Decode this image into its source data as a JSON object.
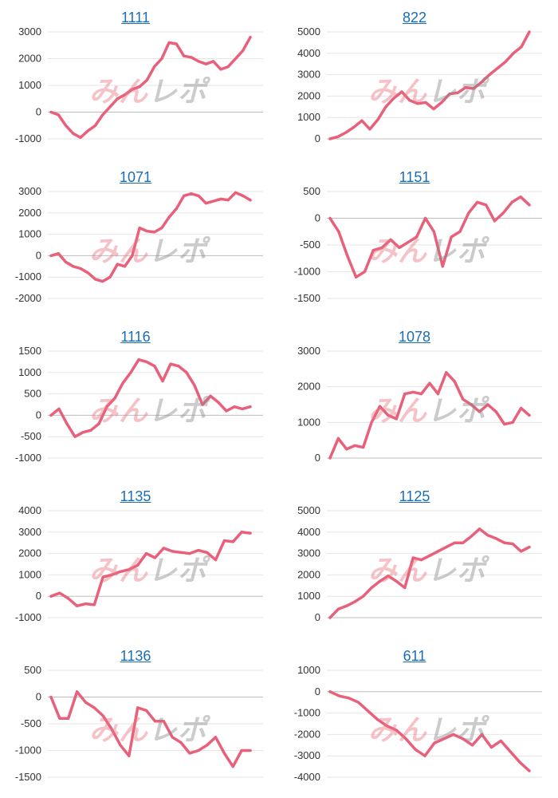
{
  "watermark": {
    "part1": "みん",
    "part2": "レポ"
  },
  "colors": {
    "line": "#e8607a",
    "title": "#1a6db5",
    "grid": "#e6e6e6",
    "zero": "#bdbdbd"
  },
  "chart_data": [
    {
      "type": "line",
      "title": "1111",
      "ylim": [
        -1000,
        3000
      ],
      "yticks": [
        3000,
        2000,
        1000,
        0,
        -1000
      ],
      "values": [
        0,
        -100,
        -500,
        -800,
        -950,
        -700,
        -500,
        -100,
        200,
        500,
        650,
        850,
        950,
        1200,
        1700,
        2000,
        2600,
        2550,
        2100,
        2050,
        1900,
        1800,
        1900,
        1600,
        1700,
        2000,
        2300,
        2800
      ]
    },
    {
      "type": "line",
      "title": "822",
      "ylim": [
        0,
        5000
      ],
      "yticks": [
        5000,
        4000,
        3000,
        2000,
        1000,
        0
      ],
      "values": [
        0,
        100,
        300,
        550,
        850,
        450,
        900,
        1500,
        1900,
        2200,
        1800,
        1650,
        1700,
        1400,
        1700,
        2100,
        2150,
        2400,
        2350,
        2650,
        3000,
        3300,
        3600,
        4000,
        4300,
        5000
      ]
    },
    {
      "type": "line",
      "title": "1071",
      "ylim": [
        -2000,
        3000
      ],
      "yticks": [
        3000,
        2000,
        1000,
        0,
        -1000,
        -2000
      ],
      "values": [
        0,
        100,
        -300,
        -500,
        -600,
        -800,
        -1100,
        -1200,
        -1000,
        -400,
        -500,
        0,
        1300,
        1150,
        1100,
        1300,
        1800,
        2200,
        2800,
        2900,
        2800,
        2450,
        2550,
        2650,
        2600,
        2950,
        2800,
        2600
      ]
    },
    {
      "type": "line",
      "title": "1151",
      "ylim": [
        -1500,
        500
      ],
      "yticks": [
        500,
        0,
        -500,
        -1000,
        -1500
      ],
      "values": [
        0,
        -250,
        -700,
        -1100,
        -1000,
        -600,
        -550,
        -400,
        -550,
        -450,
        -350,
        0,
        -250,
        -900,
        -350,
        -250,
        100,
        300,
        250,
        -50,
        100,
        300,
        400,
        250
      ]
    },
    {
      "type": "line",
      "title": "1116",
      "ylim": [
        -1000,
        1500
      ],
      "yticks": [
        1500,
        1000,
        500,
        0,
        -500,
        -1000
      ],
      "values": [
        0,
        150,
        -200,
        -500,
        -400,
        -350,
        -200,
        200,
        400,
        750,
        1000,
        1300,
        1250,
        1150,
        800,
        1200,
        1150,
        1000,
        700,
        250,
        450,
        300,
        100,
        200,
        150,
        200
      ]
    },
    {
      "type": "line",
      "title": "1078",
      "ylim": [
        0,
        3000
      ],
      "yticks": [
        3000,
        2000,
        1000,
        0
      ],
      "values": [
        0,
        550,
        250,
        350,
        300,
        1000,
        1450,
        1200,
        1100,
        1800,
        1850,
        1800,
        2100,
        1800,
        2400,
        2150,
        1650,
        1500,
        1300,
        1500,
        1300,
        950,
        1000,
        1400,
        1200
      ]
    },
    {
      "type": "line",
      "title": "1135",
      "ylim": [
        -1000,
        4000
      ],
      "yticks": [
        4000,
        3000,
        2000,
        1000,
        0,
        -1000
      ],
      "values": [
        0,
        150,
        -100,
        -450,
        -350,
        -400,
        900,
        1000,
        1150,
        1250,
        1450,
        2000,
        1800,
        2250,
        2100,
        2050,
        2000,
        2150,
        2050,
        1700,
        2600,
        2550,
        3000,
        2950
      ]
    },
    {
      "type": "line",
      "title": "1125",
      "ylim": [
        0,
        5000
      ],
      "yticks": [
        5000,
        4000,
        3000,
        2000,
        1000,
        0
      ],
      "values": [
        0,
        400,
        550,
        750,
        1000,
        1400,
        1700,
        1950,
        1700,
        1400,
        2800,
        2700,
        2900,
        3100,
        3300,
        3500,
        3500,
        3800,
        4150,
        3850,
        3700,
        3500,
        3450,
        3100,
        3300
      ]
    },
    {
      "type": "line",
      "title": "1136",
      "ylim": [
        -1500,
        500
      ],
      "yticks": [
        500,
        0,
        -500,
        -1000,
        -1500
      ],
      "values": [
        0,
        -400,
        -400,
        100,
        -100,
        -200,
        -350,
        -600,
        -900,
        -1100,
        -200,
        -250,
        -450,
        -450,
        -750,
        -850,
        -1050,
        -1000,
        -900,
        -750,
        -1050,
        -1300,
        -1000,
        -1000
      ]
    },
    {
      "type": "line",
      "title": "611",
      "ylim": [
        -4000,
        1000
      ],
      "yticks": [
        1000,
        0,
        -1000,
        -2000,
        -3000,
        -4000
      ],
      "values": [
        0,
        -200,
        -300,
        -500,
        -900,
        -1300,
        -1600,
        -1800,
        -2200,
        -2700,
        -3000,
        -2400,
        -2200,
        -2000,
        -2200,
        -2500,
        -2000,
        -2600,
        -2300,
        -2800,
        -3300,
        -3700
      ]
    }
  ]
}
